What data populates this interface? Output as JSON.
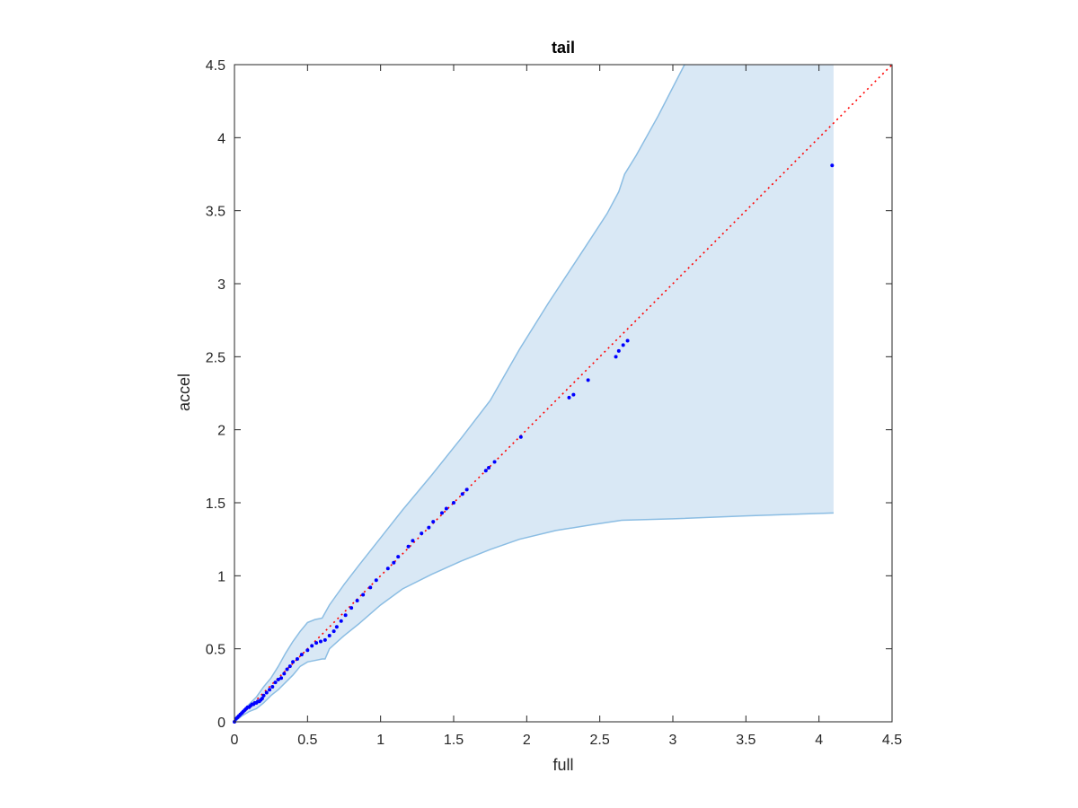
{
  "chart_data": {
    "type": "scatter",
    "title": "tail",
    "xlabel": "full",
    "ylabel": "accel",
    "xlim": [
      0,
      4.5
    ],
    "ylim": [
      0,
      4.5
    ],
    "xticks": [
      0,
      0.5,
      1,
      1.5,
      2,
      2.5,
      3,
      3.5,
      4,
      4.5
    ],
    "yticks": [
      0,
      0.5,
      1,
      1.5,
      2,
      2.5,
      3,
      3.5,
      4,
      4.5
    ],
    "xtick_labels": [
      "0",
      "0.5",
      "1",
      "1.5",
      "2",
      "2.5",
      "3",
      "3.5",
      "4",
      "4.5"
    ],
    "ytick_labels": [
      "0",
      "0.5",
      "1",
      "1.5",
      "2",
      "2.5",
      "3",
      "3.5",
      "4",
      "4.5"
    ],
    "grid": false,
    "colors": {
      "points": "#0000ff",
      "reference_line": "#ff0000",
      "band_fill": "#d9e8f5",
      "band_edge": "#8bbde3",
      "axes": "#262626"
    },
    "reference_line": {
      "x": [
        0,
        4.5
      ],
      "y": [
        0,
        4.5
      ],
      "style": "dotted"
    },
    "band": {
      "upper": [
        [
          0,
          0
        ],
        [
          0.05,
          0.06
        ],
        [
          0.1,
          0.12
        ],
        [
          0.15,
          0.17
        ],
        [
          0.2,
          0.24
        ],
        [
          0.25,
          0.3
        ],
        [
          0.3,
          0.38
        ],
        [
          0.35,
          0.47
        ],
        [
          0.4,
          0.55
        ],
        [
          0.45,
          0.62
        ],
        [
          0.5,
          0.68
        ],
        [
          0.55,
          0.7
        ],
        [
          0.6,
          0.71
        ],
        [
          0.65,
          0.8
        ],
        [
          0.75,
          0.94
        ],
        [
          0.85,
          1.07
        ],
        [
          1.0,
          1.26
        ],
        [
          1.15,
          1.45
        ],
        [
          1.35,
          1.69
        ],
        [
          1.55,
          1.94
        ],
        [
          1.75,
          2.2
        ],
        [
          1.95,
          2.55
        ],
        [
          2.15,
          2.87
        ],
        [
          2.4,
          3.25
        ],
        [
          2.55,
          3.48
        ],
        [
          2.63,
          3.63
        ],
        [
          2.67,
          3.75
        ],
        [
          2.75,
          3.88
        ],
        [
          2.9,
          4.15
        ],
        [
          3.08,
          4.5
        ]
      ],
      "lower": [
        [
          0,
          0
        ],
        [
          0.05,
          0.04
        ],
        [
          0.1,
          0.07
        ],
        [
          0.15,
          0.09
        ],
        [
          0.2,
          0.13
        ],
        [
          0.25,
          0.18
        ],
        [
          0.3,
          0.22
        ],
        [
          0.35,
          0.27
        ],
        [
          0.4,
          0.32
        ],
        [
          0.45,
          0.38
        ],
        [
          0.5,
          0.41
        ],
        [
          0.55,
          0.42
        ],
        [
          0.6,
          0.43
        ],
        [
          0.62,
          0.43
        ],
        [
          0.65,
          0.5
        ],
        [
          0.75,
          0.59
        ],
        [
          0.85,
          0.67
        ],
        [
          1.0,
          0.8
        ],
        [
          1.15,
          0.91
        ],
        [
          1.35,
          1.01
        ],
        [
          1.55,
          1.1
        ],
        [
          1.75,
          1.18
        ],
        [
          1.95,
          1.25
        ],
        [
          2.2,
          1.31
        ],
        [
          2.45,
          1.35
        ],
        [
          2.65,
          1.38
        ],
        [
          3.0,
          1.39
        ],
        [
          3.5,
          1.41
        ],
        [
          4.1,
          1.43
        ]
      ],
      "right_edge_x": 4.1
    },
    "points": {
      "x": [
        0.0,
        0.01,
        0.02,
        0.03,
        0.04,
        0.05,
        0.06,
        0.07,
        0.08,
        0.09,
        0.1,
        0.11,
        0.12,
        0.13,
        0.14,
        0.15,
        0.16,
        0.17,
        0.18,
        0.19,
        0.2,
        0.22,
        0.24,
        0.26,
        0.28,
        0.3,
        0.32,
        0.34,
        0.36,
        0.38,
        0.4,
        0.43,
        0.46,
        0.5,
        0.53,
        0.56,
        0.59,
        0.62,
        0.65,
        0.68,
        0.7,
        0.73,
        0.76,
        0.8,
        0.84,
        0.88,
        0.93,
        0.97,
        1.05,
        1.09,
        1.12,
        1.19,
        1.22,
        1.28,
        1.33,
        1.36,
        1.42,
        1.45,
        1.5,
        1.56,
        1.59,
        1.72,
        1.74,
        1.78,
        1.96,
        2.29,
        2.32,
        2.42,
        2.61,
        2.63,
        2.66,
        2.69,
        4.09
      ],
      "y": [
        0.0,
        0.02,
        0.03,
        0.04,
        0.05,
        0.06,
        0.07,
        0.08,
        0.09,
        0.1,
        0.1,
        0.11,
        0.12,
        0.12,
        0.13,
        0.13,
        0.14,
        0.14,
        0.15,
        0.16,
        0.18,
        0.2,
        0.22,
        0.24,
        0.27,
        0.29,
        0.3,
        0.33,
        0.36,
        0.38,
        0.41,
        0.43,
        0.46,
        0.49,
        0.52,
        0.54,
        0.55,
        0.56,
        0.59,
        0.62,
        0.65,
        0.69,
        0.73,
        0.78,
        0.83,
        0.87,
        0.92,
        0.97,
        1.05,
        1.09,
        1.13,
        1.2,
        1.24,
        1.29,
        1.33,
        1.37,
        1.43,
        1.46,
        1.5,
        1.56,
        1.59,
        1.72,
        1.74,
        1.78,
        1.95,
        2.22,
        2.24,
        2.34,
        2.5,
        2.54,
        2.58,
        2.61,
        3.81
      ]
    }
  }
}
